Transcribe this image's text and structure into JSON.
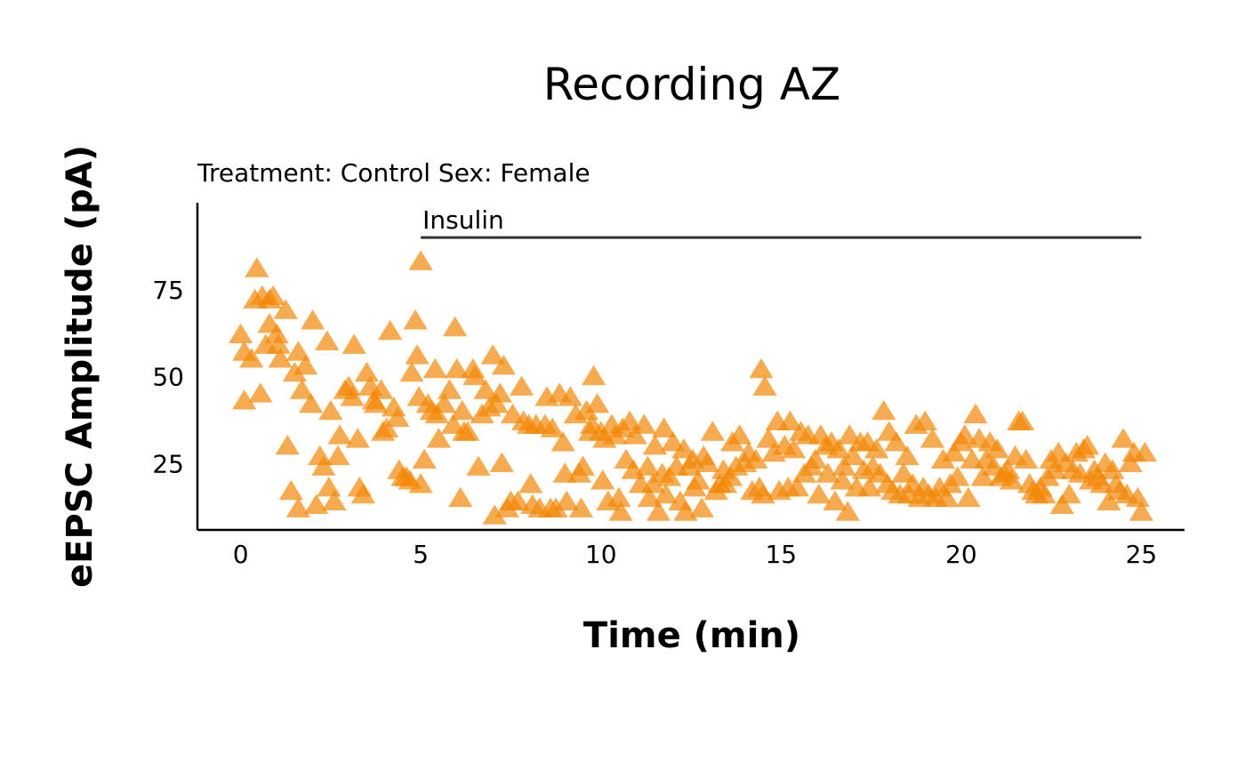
{
  "chart_data": {
    "type": "scatter",
    "title": "Recording AZ",
    "subtitle": "Treatment: Control  Sex: Female",
    "xlabel": "Time (min)",
    "ylabel": "eEPSC Amplitude (pA)",
    "xlim": [
      -1.2,
      26.2
    ],
    "ylim": [
      6,
      100
    ],
    "xticks": [
      0,
      5,
      10,
      15,
      20,
      25
    ],
    "yticks": [
      25,
      50,
      75
    ],
    "grid": false,
    "legend": "none",
    "marker": "triangle",
    "color": "#F28705",
    "annotation": {
      "label": "Insulin",
      "x_start": 5,
      "x_end": 25,
      "y": 90
    },
    "points": [
      [
        0,
        62
      ],
      [
        0.1,
        57
      ],
      [
        0.1,
        43
      ],
      [
        0.3,
        55
      ],
      [
        0.4,
        72
      ],
      [
        0.45,
        81
      ],
      [
        0.55,
        45
      ],
      [
        0.6,
        73
      ],
      [
        0.7,
        59
      ],
      [
        0.8,
        72
      ],
      [
        0.8,
        65
      ],
      [
        0.9,
        73
      ],
      [
        1.0,
        62
      ],
      [
        1.05,
        59
      ],
      [
        1.1,
        55
      ],
      [
        1.25,
        69
      ],
      [
        1.3,
        30
      ],
      [
        1.4,
        17
      ],
      [
        1.5,
        51
      ],
      [
        1.6,
        12
      ],
      [
        1.6,
        57
      ],
      [
        1.7,
        46
      ],
      [
        1.8,
        53
      ],
      [
        1.95,
        42
      ],
      [
        2.0,
        66
      ],
      [
        2.1,
        13
      ],
      [
        2.2,
        27
      ],
      [
        2.3,
        24
      ],
      [
        2.4,
        60
      ],
      [
        2.45,
        18
      ],
      [
        2.5,
        40
      ],
      [
        2.6,
        14
      ],
      [
        2.7,
        27
      ],
      [
        2.75,
        33
      ],
      [
        2.9,
        46
      ],
      [
        3.0,
        47
      ],
      [
        3.1,
        44
      ],
      [
        3.15,
        59
      ],
      [
        3.25,
        32
      ],
      [
        3.3,
        18
      ],
      [
        3.4,
        16
      ],
      [
        3.5,
        51
      ],
      [
        3.6,
        47
      ],
      [
        3.7,
        43
      ],
      [
        3.75,
        42
      ],
      [
        3.9,
        46
      ],
      [
        3.95,
        34
      ],
      [
        4.05,
        35
      ],
      [
        4.15,
        63
      ],
      [
        4.25,
        41
      ],
      [
        4.35,
        38
      ],
      [
        4.4,
        23
      ],
      [
        4.5,
        21
      ],
      [
        4.6,
        21
      ],
      [
        4.7,
        20
      ],
      [
        4.75,
        51
      ],
      [
        4.85,
        66
      ],
      [
        4.9,
        56
      ],
      [
        4.95,
        44
      ],
      [
        5.0,
        19
      ],
      [
        5.0,
        83
      ],
      [
        5.1,
        26
      ],
      [
        5.2,
        42
      ],
      [
        5.3,
        40
      ],
      [
        5.4,
        52
      ],
      [
        5.45,
        39
      ],
      [
        5.5,
        32
      ],
      [
        5.65,
        42
      ],
      [
        5.8,
        46
      ],
      [
        5.9,
        36
      ],
      [
        5.95,
        64
      ],
      [
        6.0,
        52
      ],
      [
        6.1,
        15
      ],
      [
        6.15,
        40
      ],
      [
        6.2,
        34
      ],
      [
        6.3,
        34
      ],
      [
        6.45,
        52
      ],
      [
        6.5,
        50
      ],
      [
        6.6,
        24
      ],
      [
        6.7,
        39
      ],
      [
        6.8,
        46
      ],
      [
        6.9,
        41
      ],
      [
        7.0,
        56
      ],
      [
        7.05,
        10
      ],
      [
        7.1,
        42
      ],
      [
        7.2,
        45
      ],
      [
        7.25,
        25
      ],
      [
        7.3,
        53
      ],
      [
        7.4,
        12
      ],
      [
        7.5,
        14
      ],
      [
        7.55,
        39
      ],
      [
        7.7,
        14
      ],
      [
        7.8,
        47
      ],
      [
        7.85,
        37
      ],
      [
        8.0,
        36
      ],
      [
        8.05,
        19
      ],
      [
        8.1,
        13
      ],
      [
        8.2,
        36
      ],
      [
        8.3,
        12
      ],
      [
        8.45,
        36
      ],
      [
        8.5,
        44
      ],
      [
        8.6,
        12
      ],
      [
        8.65,
        35
      ],
      [
        8.75,
        12
      ],
      [
        8.85,
        45
      ],
      [
        8.95,
        31
      ],
      [
        9.0,
        22
      ],
      [
        9.05,
        14
      ],
      [
        9.15,
        44
      ],
      [
        9.3,
        39
      ],
      [
        9.4,
        22
      ],
      [
        9.45,
        12
      ],
      [
        9.5,
        24
      ],
      [
        9.6,
        40
      ],
      [
        9.7,
        34
      ],
      [
        9.75,
        36
      ],
      [
        9.8,
        50
      ],
      [
        9.9,
        42
      ],
      [
        10.0,
        34
      ],
      [
        10.05,
        20
      ],
      [
        10.1,
        32
      ],
      [
        10.2,
        14
      ],
      [
        10.3,
        36
      ],
      [
        10.4,
        33
      ],
      [
        10.5,
        15
      ],
      [
        10.55,
        11
      ],
      [
        10.6,
        35
      ],
      [
        10.7,
        26
      ],
      [
        10.8,
        37
      ],
      [
        10.9,
        23
      ],
      [
        10.95,
        33
      ],
      [
        11.1,
        19
      ],
      [
        11.2,
        36
      ],
      [
        11.3,
        24
      ],
      [
        11.35,
        15
      ],
      [
        11.45,
        19
      ],
      [
        11.5,
        30
      ],
      [
        11.6,
        11
      ],
      [
        11.7,
        22
      ],
      [
        11.75,
        35
      ],
      [
        11.8,
        16
      ],
      [
        11.9,
        21
      ],
      [
        12.0,
        31
      ],
      [
        12.1,
        24
      ],
      [
        12.2,
        14
      ],
      [
        12.3,
        29
      ],
      [
        12.35,
        11
      ],
      [
        12.45,
        24
      ],
      [
        12.55,
        26
      ],
      [
        12.6,
        18
      ],
      [
        12.7,
        20
      ],
      [
        12.8,
        12
      ],
      [
        12.85,
        27
      ],
      [
        12.95,
        25
      ],
      [
        13.1,
        34
      ],
      [
        13.2,
        17
      ],
      [
        13.3,
        19
      ],
      [
        13.4,
        23
      ],
      [
        13.45,
        19
      ],
      [
        13.6,
        21
      ],
      [
        13.65,
        31
      ],
      [
        13.75,
        24
      ],
      [
        13.85,
        33
      ],
      [
        14.0,
        25
      ],
      [
        14.1,
        28
      ],
      [
        14.2,
        17
      ],
      [
        14.3,
        26
      ],
      [
        14.4,
        18
      ],
      [
        14.45,
        52
      ],
      [
        14.5,
        16
      ],
      [
        14.55,
        47
      ],
      [
        14.65,
        32
      ],
      [
        14.8,
        28
      ],
      [
        14.9,
        37
      ],
      [
        14.95,
        17
      ],
      [
        15.1,
        30
      ],
      [
        15.2,
        18
      ],
      [
        15.25,
        37
      ],
      [
        15.35,
        29
      ],
      [
        15.45,
        18
      ],
      [
        15.55,
        34
      ],
      [
        15.65,
        22
      ],
      [
        15.75,
        33
      ],
      [
        15.85,
        24
      ],
      [
        15.95,
        26
      ],
      [
        16.05,
        16
      ],
      [
        16.1,
        33
      ],
      [
        16.25,
        30
      ],
      [
        16.3,
        22
      ],
      [
        16.4,
        31
      ],
      [
        16.5,
        14
      ],
      [
        16.6,
        29
      ],
      [
        16.7,
        20
      ],
      [
        16.75,
        24
      ],
      [
        16.85,
        11
      ],
      [
        16.9,
        33
      ],
      [
        17.0,
        27
      ],
      [
        17.1,
        18
      ],
      [
        17.2,
        31
      ],
      [
        17.3,
        23
      ],
      [
        17.4,
        31
      ],
      [
        17.45,
        18
      ],
      [
        17.55,
        24
      ],
      [
        17.65,
        29
      ],
      [
        17.75,
        22
      ],
      [
        17.85,
        40
      ],
      [
        17.95,
        19
      ],
      [
        18.0,
        34
      ],
      [
        18.1,
        17
      ],
      [
        18.2,
        31
      ],
      [
        18.3,
        16
      ],
      [
        18.4,
        22
      ],
      [
        18.5,
        27
      ],
      [
        18.55,
        16
      ],
      [
        18.65,
        19
      ],
      [
        18.75,
        36
      ],
      [
        18.85,
        15
      ],
      [
        18.95,
        18
      ],
      [
        19.0,
        37
      ],
      [
        19.1,
        16
      ],
      [
        19.2,
        32
      ],
      [
        19.3,
        15
      ],
      [
        19.4,
        18
      ],
      [
        19.5,
        26
      ],
      [
        19.6,
        15
      ],
      [
        19.7,
        19
      ],
      [
        19.8,
        28
      ],
      [
        19.9,
        21
      ],
      [
        20.0,
        31
      ],
      [
        20.1,
        33
      ],
      [
        20.2,
        15
      ],
      [
        20.3,
        26
      ],
      [
        20.4,
        39
      ],
      [
        20.5,
        32
      ],
      [
        20.6,
        21
      ],
      [
        20.7,
        26
      ],
      [
        20.8,
        31
      ],
      [
        20.9,
        24
      ],
      [
        21.0,
        29
      ],
      [
        21.1,
        21
      ],
      [
        21.2,
        22
      ],
      [
        21.3,
        23
      ],
      [
        21.4,
        20
      ],
      [
        21.5,
        27
      ],
      [
        21.6,
        37
      ],
      [
        21.7,
        37
      ],
      [
        21.8,
        26
      ],
      [
        21.9,
        19
      ],
      [
        22.0,
        17
      ],
      [
        22.1,
        16
      ],
      [
        22.2,
        18
      ],
      [
        22.3,
        16
      ],
      [
        22.4,
        21
      ],
      [
        22.5,
        26
      ],
      [
        22.6,
        23
      ],
      [
        22.7,
        28
      ],
      [
        22.8,
        13
      ],
      [
        22.9,
        25
      ],
      [
        23.0,
        16
      ],
      [
        23.1,
        23
      ],
      [
        23.2,
        28
      ],
      [
        23.3,
        22
      ],
      [
        23.4,
        29
      ],
      [
        23.5,
        30
      ],
      [
        23.6,
        20
      ],
      [
        23.7,
        23
      ],
      [
        23.8,
        21
      ],
      [
        23.9,
        19
      ],
      [
        24.0,
        25
      ],
      [
        24.1,
        14
      ],
      [
        24.2,
        23
      ],
      [
        24.3,
        19
      ],
      [
        24.4,
        17
      ],
      [
        24.5,
        32
      ],
      [
        24.6,
        16
      ],
      [
        24.7,
        25
      ],
      [
        24.8,
        28
      ],
      [
        24.9,
        15
      ],
      [
        25.0,
        11
      ],
      [
        25.1,
        28
      ]
    ]
  }
}
